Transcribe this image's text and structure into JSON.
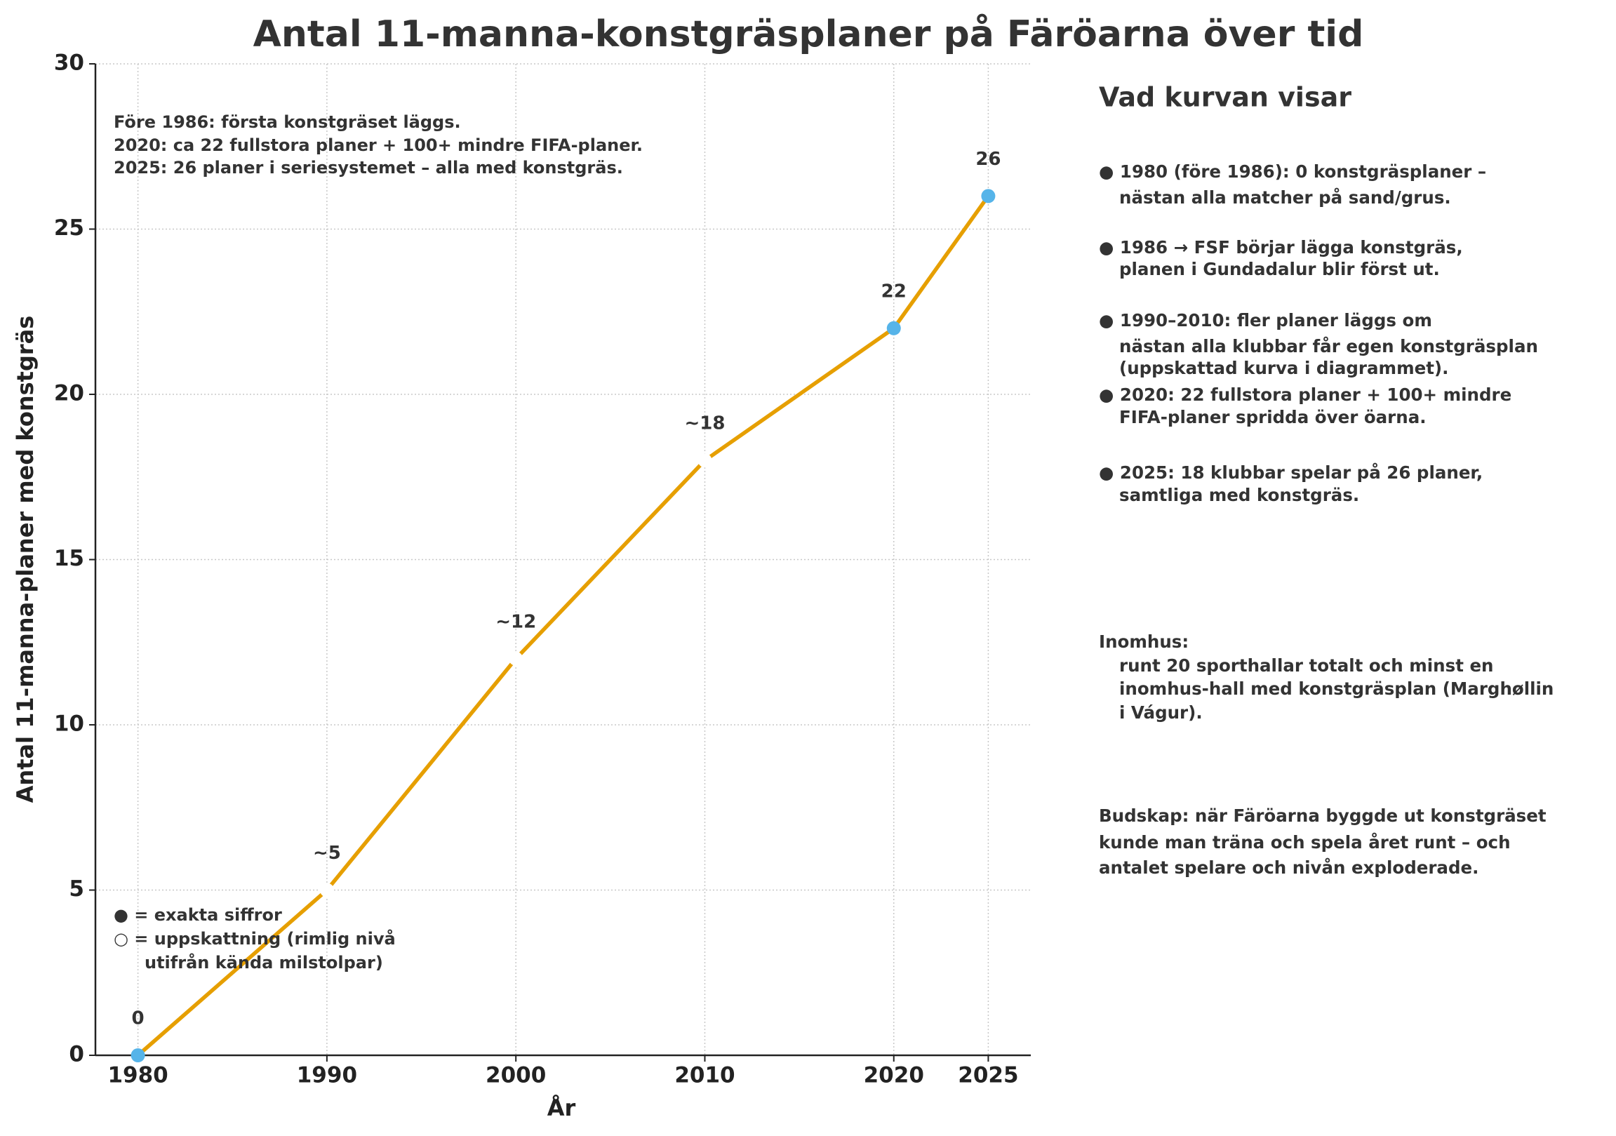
{
  "chart_data": {
    "type": "line",
    "title": "Antal 11-manna-konstgräsplaner på Färöarna över tid",
    "x_label": "År",
    "y_label": "Antal 11-manna-planer med konstgräs",
    "x": [
      1980,
      1990,
      2000,
      2010,
      2020,
      2025
    ],
    "values": [
      0,
      5,
      12,
      18,
      22,
      26
    ],
    "value_labels": [
      "0",
      "~5",
      "~12",
      "~18",
      "22",
      "26"
    ],
    "color": "#e69f00",
    "marker_colors": [
      "#56b4e9",
      "#ffffff",
      "#ffffff",
      "#ffffff",
      "#56b4e9",
      "#56b4e9"
    ],
    "xlim": [
      1977.75,
      2027.25
    ],
    "xticks": [
      1980,
      1990,
      2000,
      2010,
      2020,
      2025
    ],
    "ylim": [
      0,
      30
    ],
    "yticks": [
      0,
      5,
      10,
      15,
      20,
      25,
      30
    ],
    "grid": true,
    "annotations": [
      "Före 1986: första konstgräset läggs.",
      "2020: ca 22 fullstora planer + 100+ mindre FIFA-planer.",
      "2025: 26 planer i seriesystemet – alla med konstgräs."
    ],
    "legend_notes": [
      "● = exakta siffror",
      "○ = uppskattning (rimlig nivå",
      "utifrån kända milstolpar)"
    ],
    "sidebar_title": "Vad kurvan visar",
    "sidebar_lines": [
      "● 1980 (före 1986): 0 konstgräsplaner –",
      "nästan alla matcher på sand/grus.",
      "● 1986 → FSF börjar lägga konstgräs,",
      "planen i Gundadalur blir först ut.",
      "● 1990–2010: fler planer läggs om",
      "nästan alla klubbar får egen konstgräsplan",
      "(uppskattad kurva i diagrammet).",
      "● 2020: 22 fullstora planer + 100+ mindre",
      "FIFA-planer spridda över öarna.",
      "● 2025: 18 klubbar spelar på 26 planer,",
      "samtliga med konstgräs.",
      "Inomhus:",
      "runt 20 sporthallar totalt och minst en",
      "inomhus-hall med konstgräsplan (Marghøllin",
      "i Vágur).",
      "Budskap: när Färöarna byggde ut konstgräset",
      "kunde man träna och spela året runt – och",
      "antalet spelare och nivån exploderade."
    ]
  }
}
